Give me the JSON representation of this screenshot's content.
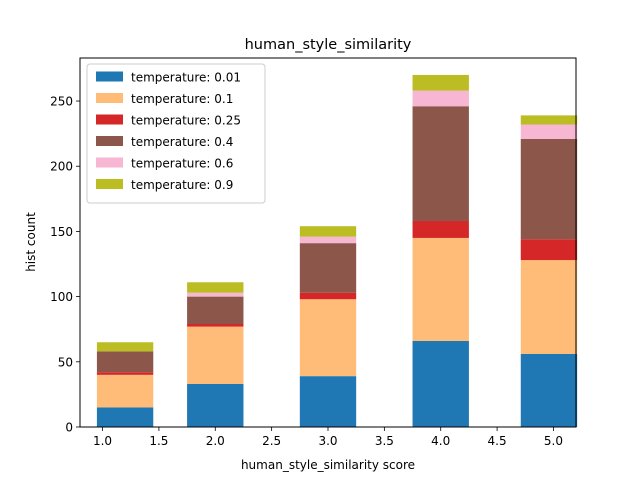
{
  "chart_data": {
    "type": "bar",
    "stacked": true,
    "title": "human_style_similarity",
    "xlabel": "human_style_similarity score",
    "ylabel": "hist count",
    "xlim": [
      0.8,
      5.2
    ],
    "ylim": [
      0,
      283
    ],
    "x_ticks": [
      1.0,
      1.5,
      2.0,
      2.5,
      3.0,
      3.5,
      4.0,
      4.5,
      5.0
    ],
    "x_tick_labels": [
      "1.0",
      "1.5",
      "2.0",
      "2.5",
      "3.0",
      "3.5",
      "4.0",
      "4.5",
      "5.0"
    ],
    "y_ticks": [
      0,
      50,
      100,
      150,
      200,
      250
    ],
    "y_tick_labels": [
      "0",
      "50",
      "100",
      "150",
      "200",
      "250"
    ],
    "bar_centers": [
      1.2,
      2.0,
      3.0,
      4.0,
      4.96
    ],
    "bar_width": 0.5,
    "legend_position": "top-left",
    "grid": false,
    "series": [
      {
        "name": "temperature: 0.01",
        "color": "#1f77b4",
        "values": [
          15,
          33,
          39,
          66,
          56
        ]
      },
      {
        "name": "temperature: 0.1",
        "color": "#ffbb78",
        "values": [
          25,
          44,
          59,
          79,
          72
        ]
      },
      {
        "name": "temperature: 0.25",
        "color": "#d62728",
        "values": [
          2,
          2,
          5,
          13,
          16
        ]
      },
      {
        "name": "temperature: 0.4",
        "color": "#8c564b",
        "values": [
          16,
          21,
          38,
          88,
          77
        ]
      },
      {
        "name": "temperature: 0.6",
        "color": "#f7b6d2",
        "values": [
          0,
          3,
          5,
          12,
          11
        ]
      },
      {
        "name": "temperature: 0.9",
        "color": "#bcbd22",
        "values": [
          7,
          8,
          8,
          12,
          7
        ]
      }
    ]
  }
}
